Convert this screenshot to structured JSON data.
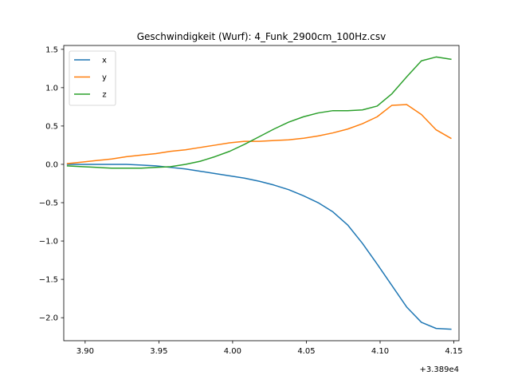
{
  "chart_data": {
    "type": "line",
    "title": "Geschwindigkeit (Wurf): 4_Funk_2900cm_100Hz.csv",
    "xlabel": "",
    "ylabel": "",
    "x_offset_label": "+3.389e4",
    "xlim": [
      3.8855,
      4.1535
    ],
    "ylim": [
      -2.3,
      1.55
    ],
    "xticks": [
      3.9,
      3.95,
      4.0,
      4.05,
      4.1,
      4.15
    ],
    "xtick_labels": [
      "3.90",
      "3.95",
      "4.00",
      "4.05",
      "4.10",
      "4.15"
    ],
    "yticks": [
      1.5,
      1.0,
      0.5,
      0.0,
      -0.5,
      -1.0,
      -1.5,
      -2.0
    ],
    "ytick_labels": [
      "1.5",
      "1.0",
      "0.5",
      "0.0",
      "−0.5",
      "−1.0",
      "−1.5",
      "−2.0"
    ],
    "grid": false,
    "legend_position": "upper-left",
    "x": [
      3.888,
      3.898,
      3.908,
      3.918,
      3.928,
      3.938,
      3.948,
      3.958,
      3.968,
      3.978,
      3.988,
      3.998,
      4.008,
      4.018,
      4.028,
      4.038,
      4.048,
      4.058,
      4.068,
      4.078,
      4.088,
      4.098,
      4.108,
      4.118,
      4.128,
      4.138,
      4.148
    ],
    "series": [
      {
        "name": "x",
        "color": "#1f77b4",
        "values": [
          0.0,
          0.0,
          0.0,
          0.0,
          0.0,
          -0.01,
          -0.02,
          -0.04,
          -0.06,
          -0.09,
          -0.12,
          -0.15,
          -0.18,
          -0.22,
          -0.27,
          -0.33,
          -0.41,
          -0.5,
          -0.62,
          -0.79,
          -1.03,
          -1.3,
          -1.58,
          -1.86,
          -2.06,
          -2.14,
          -2.15
        ]
      },
      {
        "name": "y",
        "color": "#ff7f0e",
        "values": [
          0.01,
          0.03,
          0.05,
          0.07,
          0.1,
          0.12,
          0.14,
          0.17,
          0.19,
          0.22,
          0.25,
          0.28,
          0.3,
          0.3,
          0.31,
          0.32,
          0.34,
          0.37,
          0.41,
          0.46,
          0.53,
          0.62,
          0.77,
          0.78,
          0.65,
          0.45,
          0.34
        ]
      },
      {
        "name": "z",
        "color": "#2ca02c",
        "values": [
          -0.02,
          -0.03,
          -0.04,
          -0.05,
          -0.05,
          -0.05,
          -0.04,
          -0.03,
          0.0,
          0.04,
          0.1,
          0.17,
          0.26,
          0.36,
          0.46,
          0.55,
          0.62,
          0.67,
          0.7,
          0.7,
          0.71,
          0.76,
          0.92,
          1.14,
          1.35,
          1.4,
          1.37
        ]
      }
    ]
  }
}
